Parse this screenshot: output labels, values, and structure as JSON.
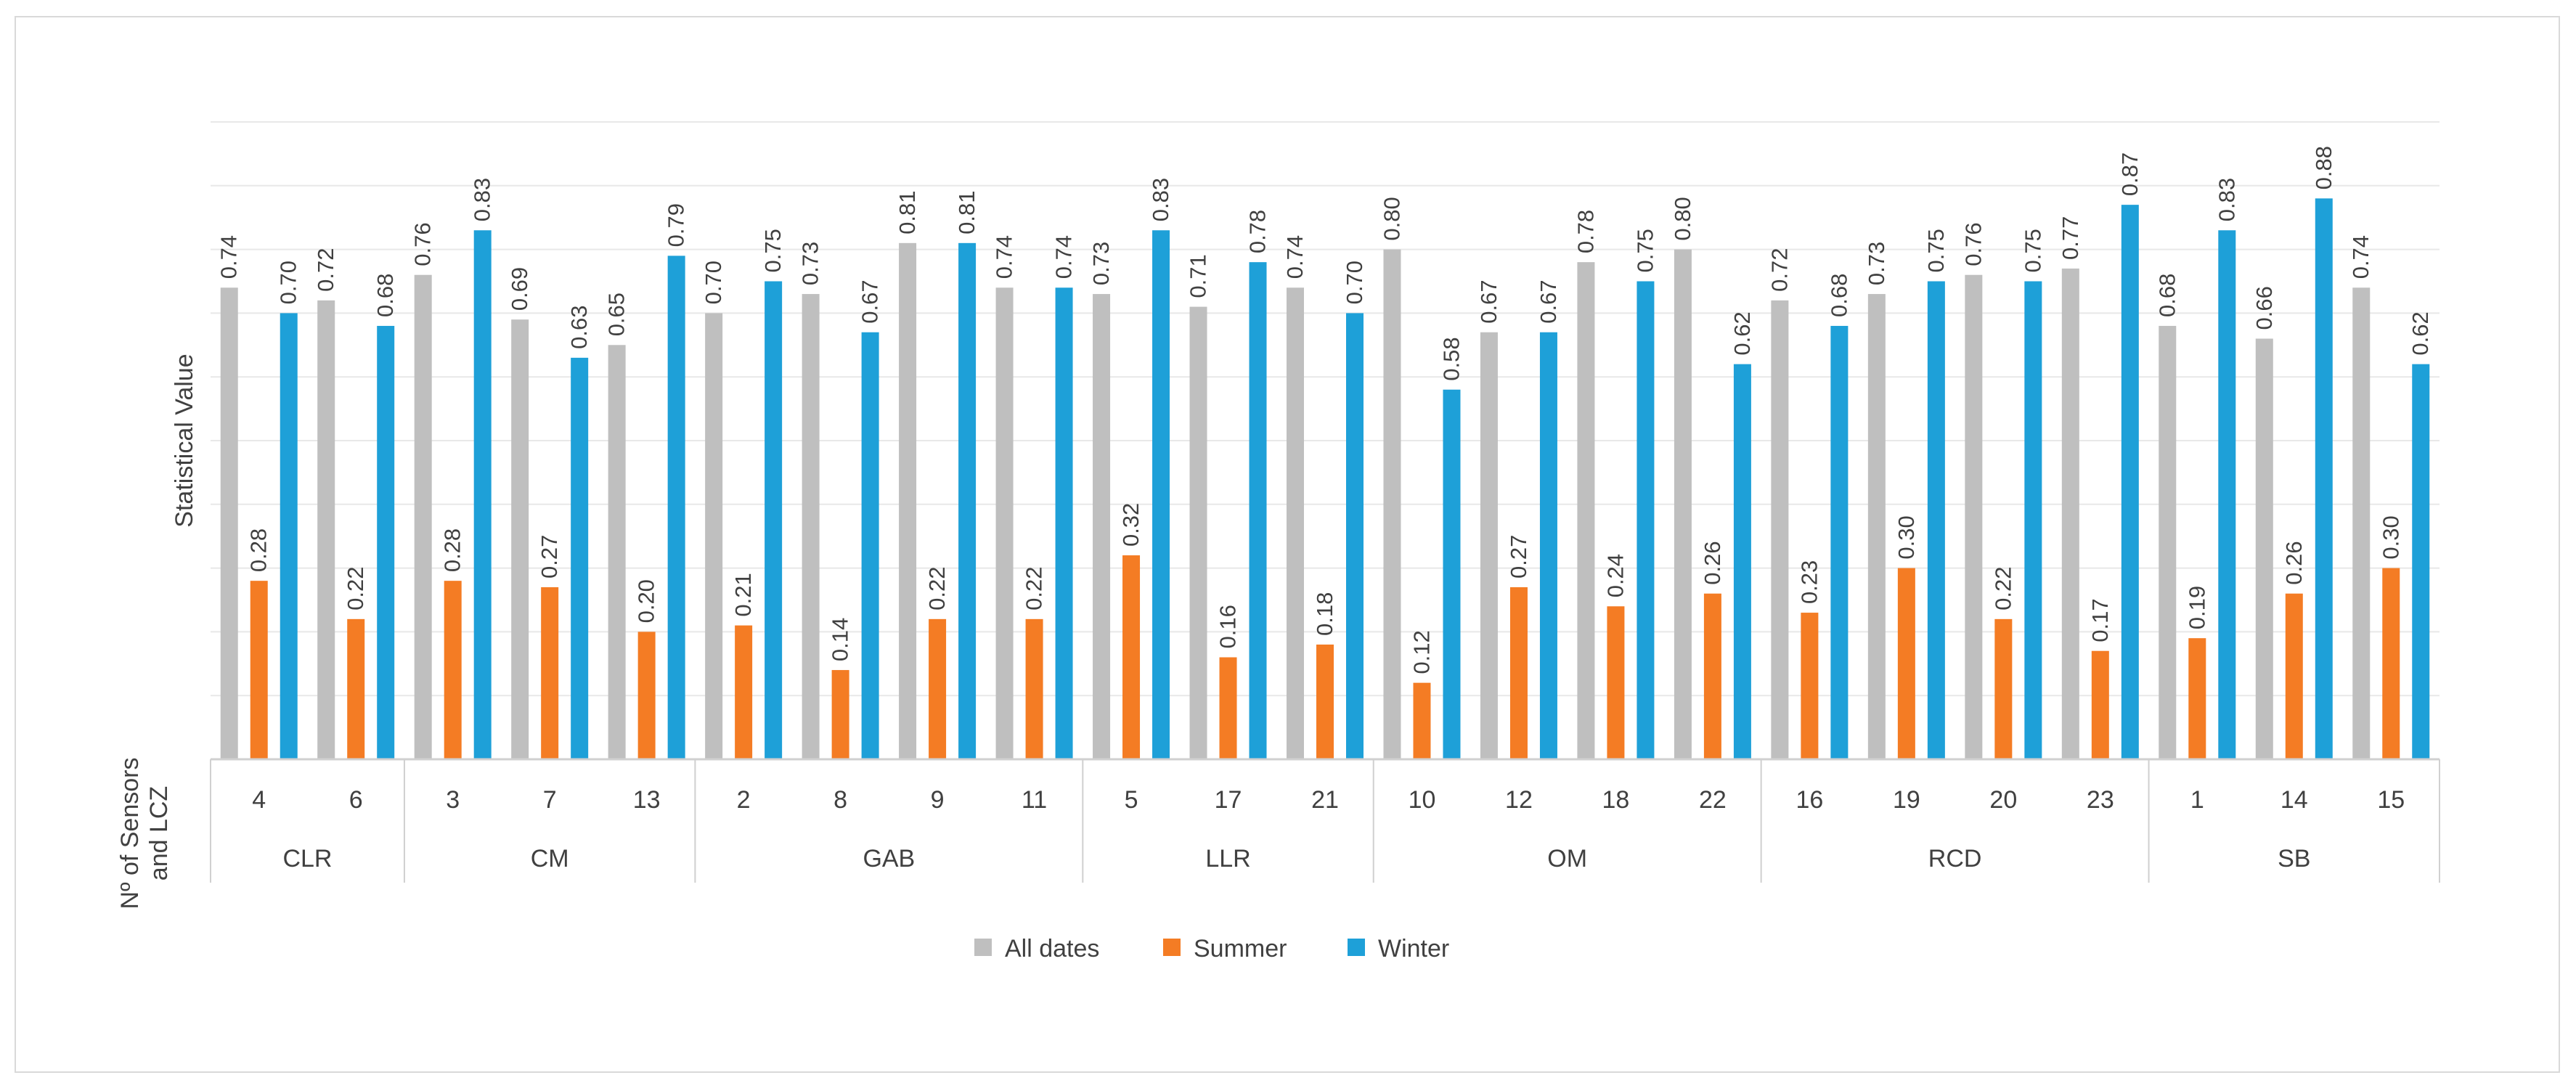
{
  "chart_data": {
    "type": "bar",
    "ylabel": "Statistical Value",
    "xlabel": "Nº of Sensors and LCZ",
    "ylim": [
      0,
      1.0
    ],
    "grid": true,
    "legend_position": "bottom",
    "groups": [
      {
        "name": "CLR",
        "sensors": [
          "4",
          "6"
        ]
      },
      {
        "name": "CM",
        "sensors": [
          "3",
          "7",
          "13"
        ]
      },
      {
        "name": "GAB",
        "sensors": [
          "2",
          "8",
          "9",
          "11"
        ]
      },
      {
        "name": "LLR",
        "sensors": [
          "5",
          "17",
          "21"
        ]
      },
      {
        "name": "OM",
        "sensors": [
          "10",
          "12",
          "18",
          "22"
        ]
      },
      {
        "name": "RCD",
        "sensors": [
          "16",
          "19",
          "20",
          "23"
        ]
      },
      {
        "name": "SB",
        "sensors": [
          "1",
          "14",
          "15"
        ]
      }
    ],
    "series": [
      {
        "name": "All dates",
        "color": "#bfbfbf",
        "values": [
          0.74,
          0.72,
          0.76,
          0.69,
          0.65,
          0.7,
          0.73,
          0.81,
          0.74,
          0.73,
          0.71,
          0.74,
          0.8,
          0.67,
          0.78,
          0.8,
          0.72,
          0.73,
          0.76,
          0.77,
          0.68,
          0.66,
          0.74
        ]
      },
      {
        "name": "Summer",
        "color": "#f47c24",
        "values": [
          0.28,
          0.22,
          0.28,
          0.27,
          0.2,
          0.21,
          0.14,
          0.22,
          0.22,
          0.32,
          0.16,
          0.18,
          0.12,
          0.27,
          0.24,
          0.26,
          0.23,
          0.3,
          0.22,
          0.17,
          0.19,
          0.26,
          0.3
        ]
      },
      {
        "name": "Winter",
        "color": "#1ea0d8",
        "values": [
          0.7,
          0.68,
          0.83,
          0.63,
          0.79,
          0.75,
          0.67,
          0.81,
          0.74,
          0.83,
          0.78,
          0.7,
          0.58,
          0.67,
          0.75,
          0.62,
          0.68,
          0.75,
          0.75,
          0.87,
          0.83,
          0.88,
          0.62
        ]
      }
    ]
  }
}
